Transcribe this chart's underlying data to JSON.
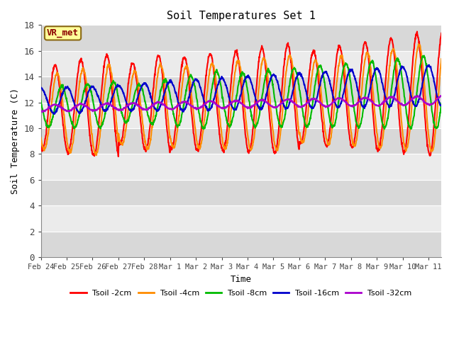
{
  "title": "Soil Temperatures Set 1",
  "xlabel": "Time",
  "ylabel": "Soil Temperature (C)",
  "ylim": [
    0,
    18
  ],
  "yticks": [
    0,
    2,
    4,
    6,
    8,
    10,
    12,
    14,
    16,
    18
  ],
  "background_color": "#ffffff",
  "plot_bg_dark": "#d8d8d8",
  "plot_bg_light": "#ebebeb",
  "annotation_text": "VR_met",
  "annotation_bg": "#ffff99",
  "annotation_border": "#8B6914",
  "annotation_text_color": "#8B0000",
  "lines": {
    "Tsoil -2cm": {
      "color": "#ff0000",
      "lw": 1.5
    },
    "Tsoil -4cm": {
      "color": "#ff8c00",
      "lw": 1.5
    },
    "Tsoil -8cm": {
      "color": "#00bb00",
      "lw": 1.5
    },
    "Tsoil -16cm": {
      "color": "#0000cc",
      "lw": 1.5
    },
    "Tsoil -32cm": {
      "color": "#aa00cc",
      "lw": 1.5
    }
  },
  "x_tick_labels": [
    "Feb 24",
    "Feb 25",
    "Feb 26",
    "Feb 27",
    "Feb 28",
    "Mar 1",
    "Mar 2",
    "Mar 3",
    "Mar 4",
    "Mar 5",
    "Mar 6",
    "Mar 7",
    "Mar 8",
    "Mar 9",
    "Mar 10",
    "Mar 11"
  ]
}
